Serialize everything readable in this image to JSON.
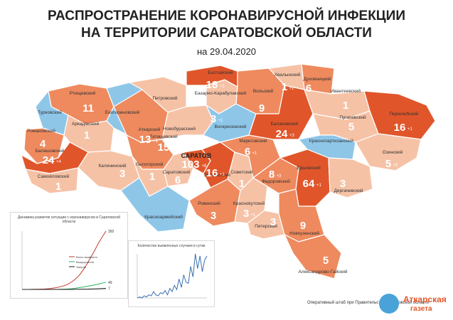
{
  "title_line1": "РАСПРОСТРАНЕНИЕ КОРОНАВИРУСНОЙ ИНФЕКЦИИ",
  "title_line2": "НА ТЕРРИТОРИИ САРАТОВСКОЙ ОБЛАСТИ",
  "date": "на 29.04.2020",
  "footer": "Оперативный штаб при Правительстве Саратовской области",
  "logo": {
    "line1": "Аткарская",
    "line2": "газета"
  },
  "colors": {
    "deep": "#e0562a",
    "mid": "#ee8a5e",
    "light": "#f6c2a6",
    "zero": "#8ec6e8",
    "label_bg": "#ffffff"
  },
  "capital": "САРАТОВ",
  "districts": [
    {
      "name": "Ртищевский",
      "count": "11",
      "delta": ""
    },
    {
      "name": "Екатериновский",
      "count": "",
      "delta": ""
    },
    {
      "name": "Петровский",
      "count": "",
      "delta": ""
    },
    {
      "name": "Турковский",
      "count": "",
      "delta": ""
    },
    {
      "name": "Аркадакский",
      "count": "1",
      "delta": ""
    },
    {
      "name": "Романовский",
      "count": "4",
      "delta": ""
    },
    {
      "name": "Балашовский",
      "count": "24",
      "delta": "+4"
    },
    {
      "name": "Самойловский",
      "count": "1",
      "delta": ""
    },
    {
      "name": "Калининский",
      "count": "3",
      "delta": ""
    },
    {
      "name": "Аткарский",
      "count": "13",
      "delta": "+1"
    },
    {
      "name": "Новобурасский",
      "count": "",
      "delta": ""
    },
    {
      "name": "Татищевский",
      "count": "15",
      "delta": ""
    },
    {
      "name": "Лысогорский",
      "count": "1",
      "delta": ""
    },
    {
      "name": "Саратовский",
      "count": "6",
      "delta": ""
    },
    {
      "name": "Саратов",
      "count": "103",
      "delta": "+8"
    },
    {
      "name": "Красноармейский",
      "count": "",
      "delta": ""
    },
    {
      "name": "Базарно-Карабулакский",
      "count": "3",
      "delta": "+1"
    },
    {
      "name": "Балтайский",
      "count": "18",
      "delta": "+1"
    },
    {
      "name": "Воскресенский",
      "count": "",
      "delta": ""
    },
    {
      "name": "Энгельсский",
      "count": "16",
      "delta": "+1"
    },
    {
      "name": "Советский",
      "count": "1",
      "delta": ""
    },
    {
      "name": "Ровенский",
      "count": "3",
      "delta": ""
    },
    {
      "name": "Красноkутский",
      "count": "3",
      "delta": "+1"
    },
    {
      "name": "Питерский",
      "count": "3",
      "delta": ""
    },
    {
      "name": "Марксовский",
      "count": "6",
      "delta": "+1"
    },
    {
      "name": "Федоровский",
      "count": "8",
      "delta": "+3"
    },
    {
      "name": "Вольский",
      "count": "9",
      "delta": ""
    },
    {
      "name": "Хвалынский",
      "count": "1",
      "delta": "+1"
    },
    {
      "name": "Духовницкий",
      "count": "6",
      "delta": ""
    },
    {
      "name": "Балаковский",
      "count": "24",
      "delta": "+3"
    },
    {
      "name": "Ивантеевский",
      "count": "1",
      "delta": ""
    },
    {
      "name": "Пугачевский",
      "count": "5",
      "delta": ""
    },
    {
      "name": "Краснопартизанский",
      "count": "",
      "delta": ""
    },
    {
      "name": "Перелюбский",
      "count": "16",
      "delta": "+1"
    },
    {
      "name": "Озинский",
      "count": "5",
      "delta": "+2"
    },
    {
      "name": "Ершовский",
      "count": "64",
      "delta": "+1"
    },
    {
      "name": "Дергачевский",
      "count": "3",
      "delta": ""
    },
    {
      "name": "Новоузенский",
      "count": "9",
      "delta": ""
    },
    {
      "name": "Александрово-Гайский",
      "count": "5",
      "delta": ""
    }
  ],
  "chart1": {
    "title": "Динамика развития ситуации с коронавирусом в Саратовской области",
    "legend": [
      "Всего выявлено",
      "Выздоровели",
      "Умерли"
    ],
    "end_labels": [
      "392",
      "49",
      "7"
    ]
  },
  "chart2": {
    "title": "Количество выявленных случаев в сутки"
  },
  "chart_data": [
    {
      "type": "line",
      "title": "Динамика развития ситуации с коронавирусом в Саратовской области",
      "series": [
        {
          "name": "Всего выявлено",
          "values": [
            0,
            0,
            0,
            1,
            1,
            2,
            3,
            5,
            8,
            12,
            18,
            25,
            35,
            50,
            70,
            95,
            130,
            170,
            215,
            260,
            310,
            352,
            392
          ]
        },
        {
          "name": "Выздоровели",
          "values": [
            0,
            0,
            0,
            0,
            0,
            0,
            0,
            0,
            0,
            0,
            1,
            2,
            3,
            5,
            8,
            12,
            16,
            20,
            25,
            30,
            36,
            42,
            49
          ]
        },
        {
          "name": "Умерли",
          "values": [
            0,
            0,
            0,
            0,
            0,
            0,
            0,
            0,
            0,
            0,
            0,
            0,
            0,
            0,
            1,
            1,
            2,
            2,
            3,
            4,
            5,
            6,
            7
          ]
        }
      ]
    },
    {
      "type": "line",
      "title": "Количество выявленных случаев в сутки",
      "series": [
        {
          "name": "",
          "values": [
            0,
            1,
            0,
            2,
            1,
            3,
            2,
            6,
            3,
            2,
            5,
            4,
            7,
            3,
            9,
            6,
            12,
            8,
            18,
            10,
            22,
            15,
            14,
            30,
            20,
            42,
            28,
            40,
            25,
            36,
            40
          ]
        }
      ]
    }
  ]
}
